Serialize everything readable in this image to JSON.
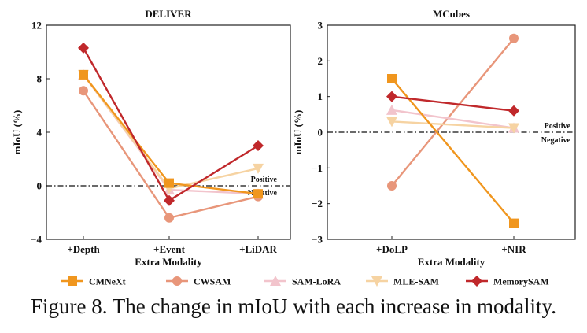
{
  "chart_data": [
    {
      "type": "line",
      "title": "DELIVER",
      "xlabel": "Extra Modality",
      "ylabel": "mIoU (%)",
      "categories": [
        "+Depth",
        "+Event",
        "+LiDAR"
      ],
      "ylim": [
        -4,
        12
      ],
      "yticks": [
        "12",
        "8",
        "4",
        "0",
        "−4"
      ],
      "grid": false,
      "reference_line": 0,
      "positive_label": "Positive",
      "negative_label": "Negative",
      "series": [
        {
          "name": "CMNeXt",
          "values": [
            8.3,
            0.2,
            -0.6
          ]
        },
        {
          "name": "CWSAM",
          "values": [
            7.1,
            -2.4,
            -0.8
          ]
        },
        {
          "name": "SAM-LoRA",
          "values": [
            8.3,
            -0.3,
            -0.6
          ]
        },
        {
          "name": "MLE-SAM",
          "values": [
            8.3,
            -0.2,
            1.3
          ]
        },
        {
          "name": "MemorySAM",
          "values": [
            10.3,
            -1.1,
            3.0
          ]
        }
      ]
    },
    {
      "type": "line",
      "title": "MCubes",
      "xlabel": "Extra Modality",
      "ylabel": "mIoU (%)",
      "categories": [
        "+DoLP",
        "+NIR"
      ],
      "ylim": [
        -3,
        3
      ],
      "yticks": [
        "3",
        "2",
        "1",
        "0",
        "−1",
        "−2",
        "−3"
      ],
      "grid": false,
      "reference_line": 0,
      "positive_label": "Positive",
      "negative_label": "Negative",
      "series": [
        {
          "name": "CMNeXt",
          "values": [
            1.5,
            -2.55
          ]
        },
        {
          "name": "CWSAM",
          "values": [
            -1.5,
            2.63
          ]
        },
        {
          "name": "SAM-LoRA",
          "values": [
            0.62,
            0.12
          ]
        },
        {
          "name": "MLE-SAM",
          "values": [
            0.3,
            0.12
          ]
        },
        {
          "name": "MemorySAM",
          "values": [
            1.0,
            0.6
          ]
        }
      ]
    }
  ],
  "legend": [
    {
      "name": "CMNeXt",
      "color": "#F0961E",
      "marker": "square"
    },
    {
      "name": "CWSAM",
      "color": "#E8967A",
      "marker": "circle"
    },
    {
      "name": "SAM-LoRA",
      "color": "#F2C4CC",
      "marker": "triangle-up"
    },
    {
      "name": "MLE-SAM",
      "color": "#F6D3A2",
      "marker": "triangle-down"
    },
    {
      "name": "MemorySAM",
      "color": "#C0282B",
      "marker": "diamond"
    }
  ],
  "caption": "Figure 8. The change in mIoU with each increase in modality."
}
